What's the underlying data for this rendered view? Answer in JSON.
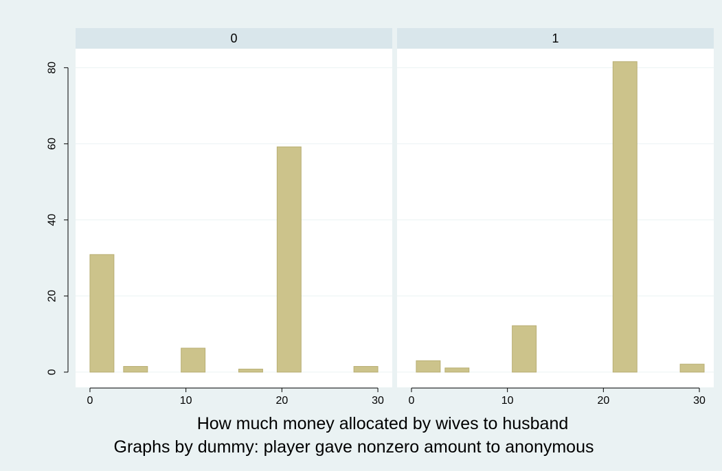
{
  "chart_data": {
    "type": "bar",
    "x_label": "How much money allocated by wives to husband",
    "note": "Graphs by dummy: player gave nonzero amount to anonymous",
    "x_range": [
      -1.5,
      31.5
    ],
    "x_ticks": [
      0,
      10,
      20,
      30
    ],
    "y_range": [
      -4,
      85
    ],
    "y_ticks": [
      0,
      20,
      40,
      60,
      80
    ],
    "grid": true,
    "colors": {
      "outer_background": "#eaf2f3",
      "plot_background": "#ffffff",
      "strip_background": "#d9e6eb",
      "bar_fill": "#ccc38b",
      "bar_edge": "#b8ae72",
      "grid": "#eaf2f3"
    },
    "panels": [
      {
        "label": "0",
        "bars": [
          {
            "start": 0,
            "end": 2.5,
            "value": 30.9
          },
          {
            "start": 3.5,
            "end": 6,
            "value": 1.5
          },
          {
            "start": 9.5,
            "end": 12,
            "value": 6.3
          },
          {
            "start": 15.5,
            "end": 18,
            "value": 0.8
          },
          {
            "start": 19.5,
            "end": 22,
            "value": 59.2
          },
          {
            "start": 27.5,
            "end": 30,
            "value": 1.5
          }
        ]
      },
      {
        "label": "1",
        "bars": [
          {
            "start": 0.5,
            "end": 3,
            "value": 3.0
          },
          {
            "start": 3.5,
            "end": 6,
            "value": 1.1
          },
          {
            "start": 10.5,
            "end": 13,
            "value": 12.2
          },
          {
            "start": 21,
            "end": 23.5,
            "value": 81.6
          },
          {
            "start": 28,
            "end": 30.5,
            "value": 2.1
          }
        ]
      }
    ]
  }
}
